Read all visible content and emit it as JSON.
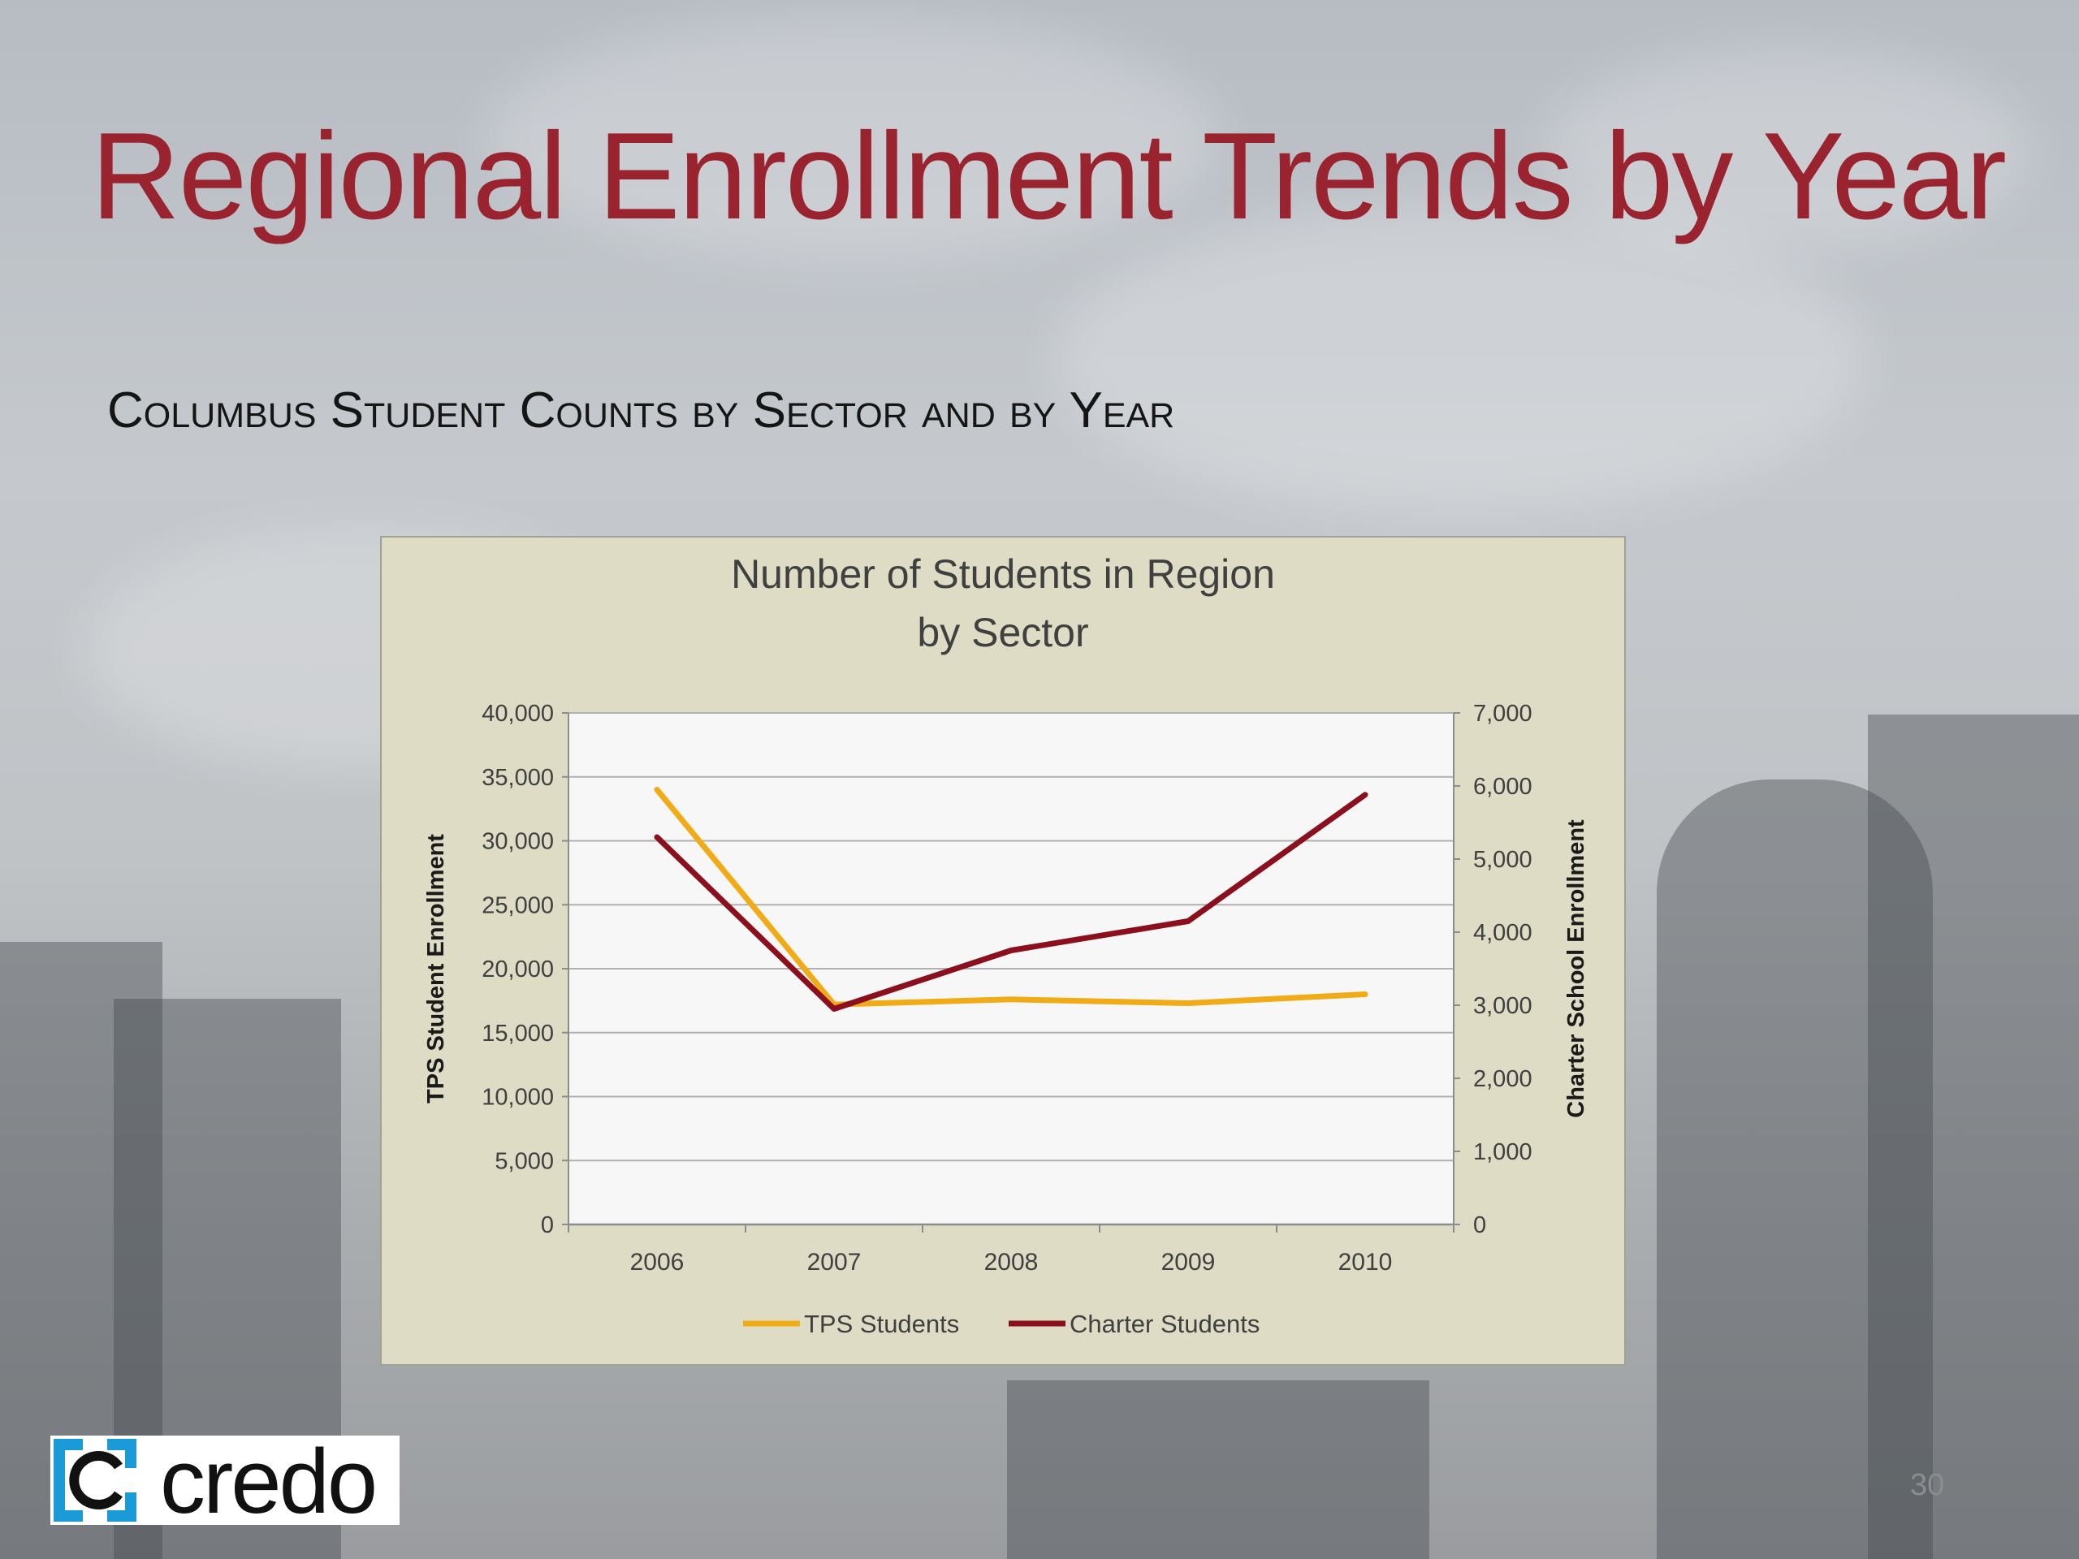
{
  "slide": {
    "title": "Regional Enrollment Trends by Year",
    "subtitle": "Columbus Student Counts by Sector and by Year",
    "page_number": "30",
    "logo_text": "credo"
  },
  "colors": {
    "title": "#9a2330",
    "tps": "#f0ab17",
    "charter": "#8b0f1c",
    "chart_bg": "#dedcc5",
    "plot_bg": "#f7f7f7"
  },
  "chart_data": {
    "type": "line",
    "title": "Number of Students in Region by Sector",
    "title_lines": [
      "Number of Students in Region",
      "by Sector"
    ],
    "x": [
      "2006",
      "2007",
      "2008",
      "2009",
      "2010"
    ],
    "ylabel": "TPS Student Enrollment",
    "y2label": "Charter School Enrollment",
    "ylim": [
      0,
      40000
    ],
    "y2lim": [
      0,
      7000
    ],
    "yticks": [
      "0",
      "5,000",
      "10,000",
      "15,000",
      "20,000",
      "25,000",
      "30,000",
      "35,000",
      "40,000"
    ],
    "y2ticks": [
      "0",
      "1,000",
      "2,000",
      "3,000",
      "4,000",
      "5,000",
      "6,000",
      "7,000"
    ],
    "grid": true,
    "legend": "bottom",
    "series": [
      {
        "name": "TPS Students",
        "axis": "left",
        "values": [
          34000,
          17200,
          17600,
          17300,
          18000
        ]
      },
      {
        "name": "Charter Students",
        "axis": "right",
        "values": [
          5300,
          2950,
          3750,
          4150,
          5880
        ]
      }
    ]
  }
}
